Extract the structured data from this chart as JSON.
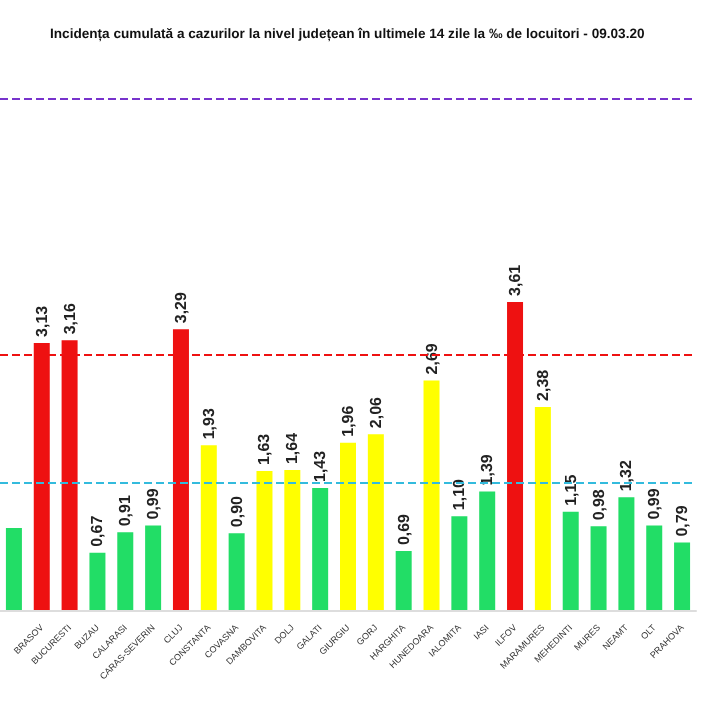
{
  "chart_data": {
    "type": "bar",
    "title": "Incidența cumulată a cazurilor la nivel județean în ultimele 14 zile la ‰ de locuitori - 09.03.20",
    "categories": [
      null,
      "BRASOV",
      "BUCURESTI",
      "BUZAU",
      "CALARASI",
      "CARAS-SEVERIN",
      "CLUJ",
      "CONSTANTA",
      "COVASNA",
      "DAMBOVITA",
      "DOLJ",
      "GALATI",
      "GIURGIU",
      "GORJ",
      "HARGHITA",
      "HUNEDOARA",
      "IALOMITA",
      "IASI",
      "ILFOV",
      "MARAMURES",
      "MEHEDINTI",
      "MURES",
      "NEAMT",
      "OLT",
      "PRAHOVA"
    ],
    "values": [
      0.96,
      3.13,
      3.16,
      0.67,
      0.91,
      0.99,
      3.29,
      1.93,
      0.9,
      1.63,
      1.64,
      1.43,
      1.96,
      2.06,
      0.69,
      2.69,
      1.1,
      1.39,
      3.61,
      2.38,
      1.15,
      0.98,
      1.32,
      0.99,
      0.79
    ],
    "value_labels": [
      null,
      "3,13",
      "3,16",
      "0,67",
      "0,91",
      "0,99",
      "3,29",
      "1,93",
      "0,90",
      "1,63",
      "1,64",
      "1,43",
      "1,96",
      "2,06",
      "0,69",
      "2,69",
      "1,10",
      "1,39",
      "3,61",
      "2,38",
      "1,15",
      "0,98",
      "1,32",
      "0,99",
      "0,79"
    ],
    "colors": [
      "#22dd66",
      "#ee1111",
      "#ee1111",
      "#22dd66",
      "#22dd66",
      "#22dd66",
      "#ee1111",
      "#ffff00",
      "#22dd66",
      "#ffff00",
      "#ffff00",
      "#22dd66",
      "#ffff00",
      "#ffff00",
      "#22dd66",
      "#ffff00",
      "#22dd66",
      "#22dd66",
      "#ee1111",
      "#ffff00",
      "#22dd66",
      "#22dd66",
      "#22dd66",
      "#22dd66",
      "#22dd66"
    ],
    "ylim": [
      0,
      6
    ],
    "tick_labels": "x",
    "grid": false,
    "ref_lines": [
      {
        "axis": "y",
        "value": 1.5,
        "color": "#33bbdd",
        "line_style": "dashed"
      },
      {
        "axis": "y",
        "value": 3,
        "color": "#ee1111",
        "line_style": "dashed"
      },
      {
        "axis": "y",
        "value": 6,
        "color": "#7733cc",
        "line_style": "dashed"
      }
    ]
  }
}
